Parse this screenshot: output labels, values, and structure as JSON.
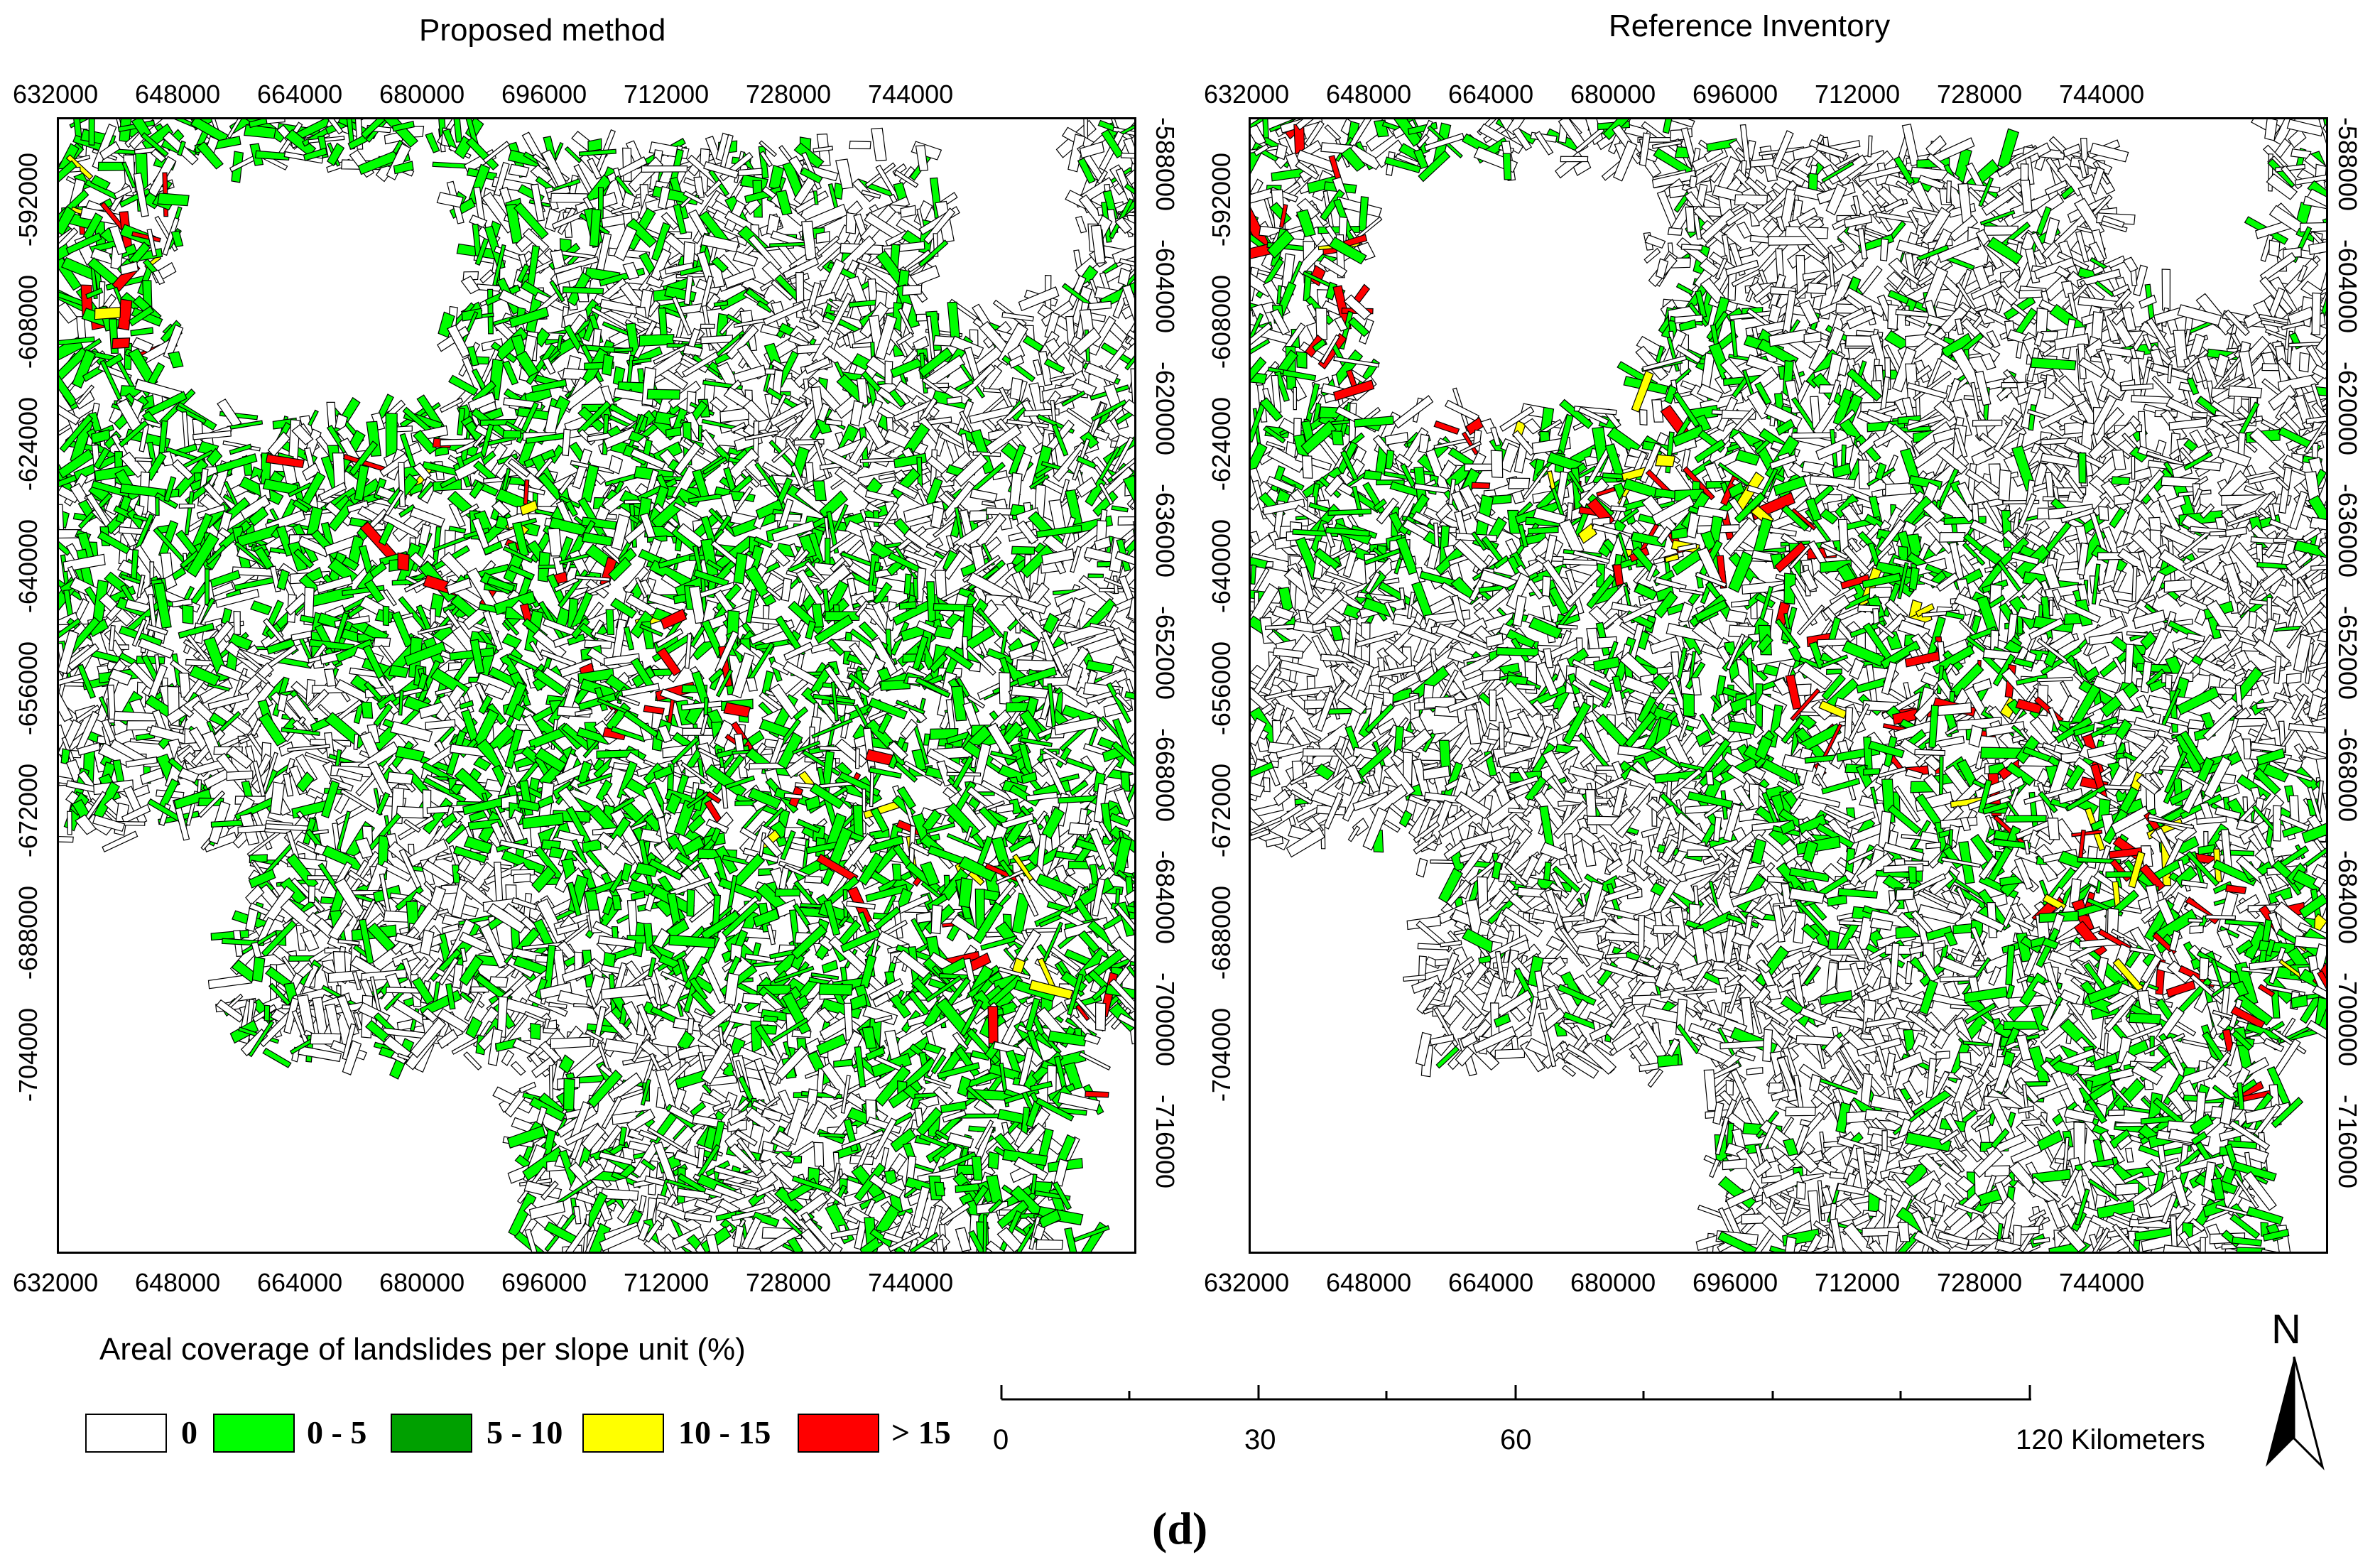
{
  "maps": [
    {
      "title": "Proposed method",
      "x_ticks": [
        "632000",
        "648000",
        "664000",
        "680000",
        "696000",
        "712000",
        "728000",
        "744000"
      ],
      "y_ticks_left": [
        "-592000",
        "-608000",
        "-624000",
        "-640000",
        "-656000",
        "-672000",
        "-688000",
        "-704000"
      ],
      "y_ticks_right": [
        "-588000",
        "-604000",
        "-620000",
        "-636000",
        "-652000",
        "-668000",
        "-684000",
        "-700000",
        "-716000"
      ]
    },
    {
      "title": "Reference Inventory",
      "x_ticks": [
        "632000",
        "648000",
        "664000",
        "680000",
        "696000",
        "712000",
        "728000",
        "744000"
      ],
      "y_ticks_left": [
        "-592000",
        "-608000",
        "-624000",
        "-640000",
        "-656000",
        "-672000",
        "-688000",
        "-704000"
      ],
      "y_ticks_right": [
        "-588000",
        "-604000",
        "-620000",
        "-636000",
        "-652000",
        "-668000",
        "-684000",
        "-700000",
        "-716000"
      ]
    }
  ],
  "legend": {
    "title": "Areal coverage of landslides per slope unit (%)",
    "classes": [
      {
        "label": "0",
        "color": "#ffffff"
      },
      {
        "label": "0 - 5",
        "color": "#00ff00"
      },
      {
        "label": "5 - 10",
        "color": "#00a000"
      },
      {
        "label": "10 - 15",
        "color": "#ffff00"
      },
      {
        "label": "> 15",
        "color": "#ff0000"
      }
    ]
  },
  "scale_bar": {
    "labels": [
      "0",
      "30",
      "60",
      "120 Kilometers"
    ]
  },
  "north_arrow": {
    "label": "N",
    "icon": "north-arrow-icon"
  },
  "panel_label": "(d)"
}
